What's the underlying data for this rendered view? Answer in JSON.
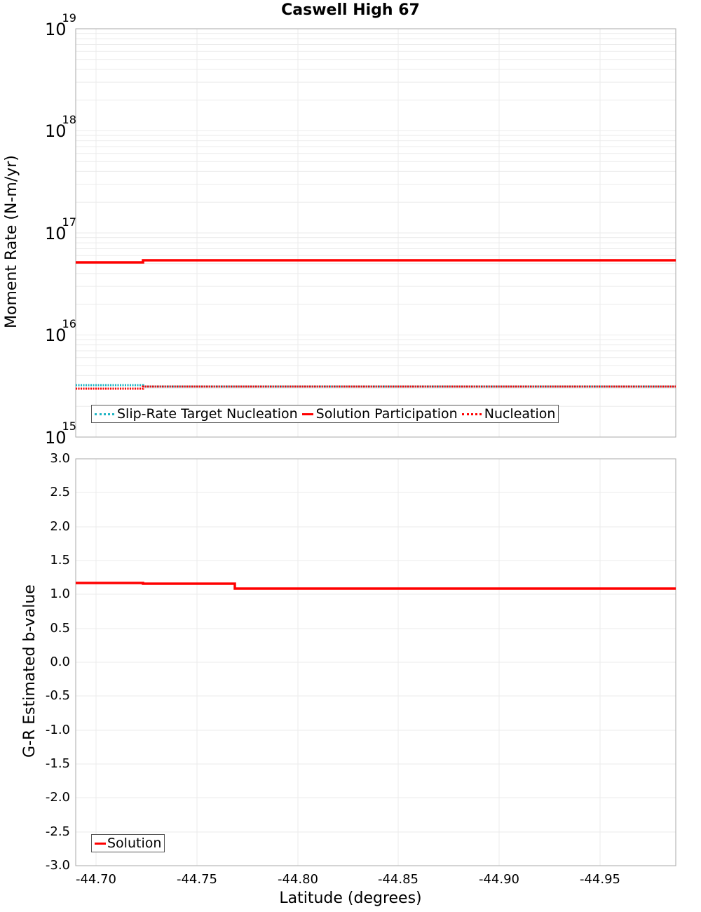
{
  "title": "Caswell High 67",
  "chart_data": [
    {
      "type": "line",
      "title": "Caswell High 67",
      "xlabel": "Latitude (degrees)",
      "ylabel": "Moment Rate (N-m/yr)",
      "yscale": "log",
      "ylim": [
        1000000000000000.0,
        1e+19
      ],
      "xlim": [
        -44.69,
        -44.988
      ],
      "y_ticks": [
        "10^15",
        "10^16",
        "10^17",
        "10^18",
        "10^19"
      ],
      "grid": true,
      "legend_position": "lower-left",
      "x_breakpoints": [
        -44.69,
        -44.724,
        -44.769,
        -44.832,
        -44.895,
        -44.949,
        -44.988
      ],
      "series": [
        {
          "name": "Slip-Rate Target Nucleation",
          "style": "dotted",
          "color": "#1fb5c4",
          "values": [
            3100000000000000.0,
            3100000000000000.0,
            3100000000000000.0,
            3100000000000000.0,
            3100000000000000.0,
            3100000000000000.0
          ]
        },
        {
          "name": "Solution Participation",
          "style": "solid",
          "color": "#ff0000",
          "values": [
            5.1e+16,
            5.35e+16,
            5.35e+16,
            5.35e+16,
            5.35e+16,
            5.35e+16
          ]
        },
        {
          "name": "Nucleation",
          "style": "dotted",
          "color": "#ff0000",
          "values": [
            2950000000000000.0,
            3100000000000000.0,
            3100000000000000.0,
            3100000000000000.0,
            3100000000000000.0,
            3100000000000000.0
          ]
        }
      ]
    },
    {
      "type": "line",
      "xlabel": "Latitude (degrees)",
      "ylabel": "G-R Estimated b-value",
      "ylim": [
        -3.0,
        3.0
      ],
      "xlim": [
        -44.69,
        -44.988
      ],
      "y_ticks": [
        "3.0",
        "2.5",
        "2.0",
        "1.5",
        "1.0",
        "0.5",
        "0.0",
        "-0.5",
        "-1.0",
        "-1.5",
        "-2.0",
        "-2.5",
        "-3.0"
      ],
      "x_ticks": [
        "-44.70",
        "-44.75",
        "-44.80",
        "-44.85",
        "-44.90",
        "-44.95"
      ],
      "grid": true,
      "legend_position": "lower-left",
      "x_breakpoints": [
        -44.69,
        -44.724,
        -44.769,
        -44.832,
        -44.895,
        -44.949,
        -44.988
      ],
      "series": [
        {
          "name": "Solution",
          "style": "solid",
          "color": "#ff0000",
          "values": [
            1.17,
            1.16,
            1.09,
            1.09,
            1.09,
            1.09
          ]
        }
      ]
    }
  ],
  "top": {
    "ylabel": "Moment Rate (N-m/yr)",
    "ticks": [
      {
        "base": "10",
        "exp": "19"
      },
      {
        "base": "10",
        "exp": "18"
      },
      {
        "base": "10",
        "exp": "17"
      },
      {
        "base": "10",
        "exp": "16"
      },
      {
        "base": "10",
        "exp": "15"
      }
    ],
    "legend": [
      "Slip-Rate Target Nucleation",
      "Solution Participation",
      "Nucleation"
    ]
  },
  "bottom": {
    "ylabel": "G-R Estimated b-value",
    "ticks": [
      "3.0",
      "2.5",
      "2.0",
      "1.5",
      "1.0",
      "0.5",
      "0.0",
      "-0.5",
      "-1.0",
      "-1.5",
      "-2.0",
      "-2.5",
      "-3.0"
    ],
    "legend": [
      "Solution"
    ]
  },
  "xaxis": {
    "label": "Latitude (degrees)",
    "ticks": [
      "-44.70",
      "-44.75",
      "-44.80",
      "-44.85",
      "-44.90",
      "-44.95"
    ]
  },
  "colors": {
    "cyan": "#1fb5c4",
    "red": "#ff0000",
    "grid": "#e8e8e8",
    "frame": "#aaaaaa"
  }
}
